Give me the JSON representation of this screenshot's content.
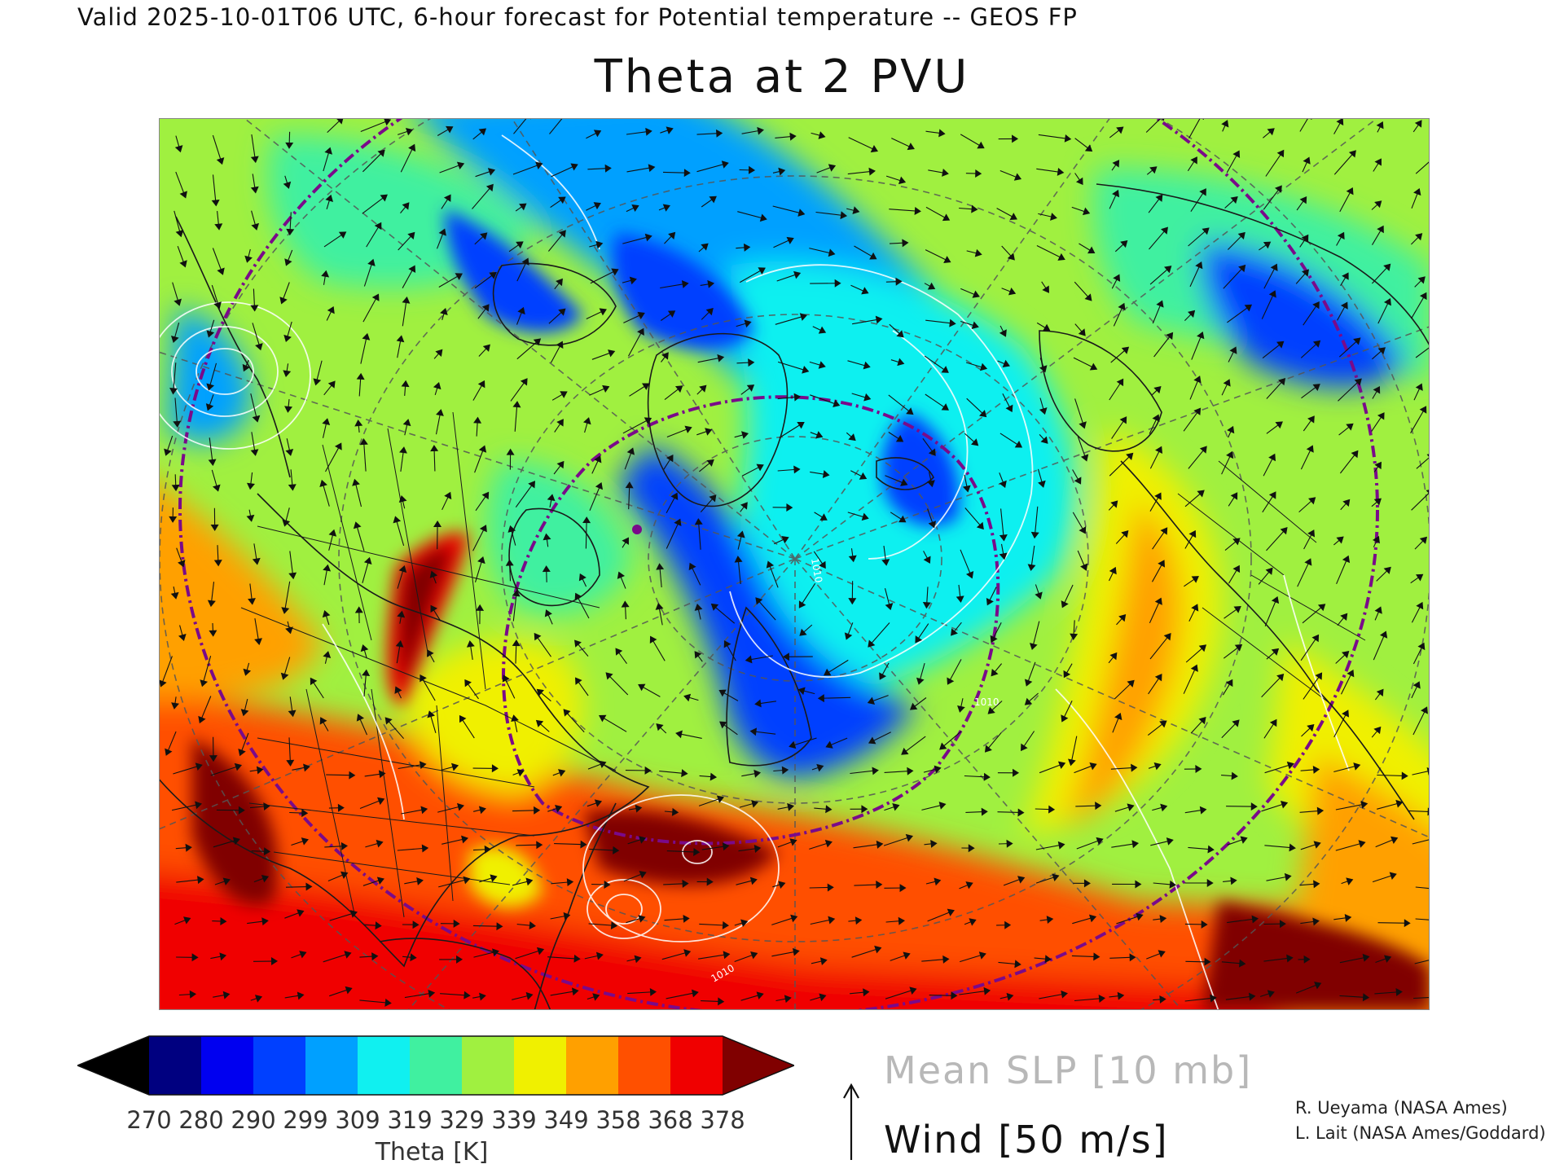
{
  "header": {
    "valid_line": "Valid 2025-10-01T06 UTC, 6-hour forecast for Potential temperature -- GEOS FP",
    "title": "Theta at 2 PVU"
  },
  "colorbar": {
    "label": "Theta [K]",
    "ticks": [
      "270",
      "280",
      "290",
      "299",
      "309",
      "319",
      "329",
      "339",
      "349",
      "358",
      "368",
      "378"
    ],
    "colors": [
      "#000000",
      "#000080",
      "#0000f0",
      "#0040ff",
      "#00a0ff",
      "#10f0f0",
      "#40f0a0",
      "#a0f040",
      "#f0f000",
      "#ffa000",
      "#ff5000",
      "#f00000",
      "#800000"
    ]
  },
  "legend": {
    "slp": "Mean SLP [10 mb]",
    "wind": "Wind [50 m/s]"
  },
  "credits": {
    "line1": "R. Ueyama (NASA Ames)",
    "line2": "L. Lait (NASA Ames/Goddard)"
  },
  "map": {
    "slp_label": "1010",
    "field_colors": {
      "deep_blue": "#0040ff",
      "blue": "#00a0ff",
      "cyan": "#10f0f0",
      "teal": "#40f0a0",
      "green": "#a0f040",
      "yellow": "#f0f000",
      "orange": "#ffa000",
      "red_orange": "#ff5000",
      "red": "#f00000",
      "dark_red": "#800000"
    },
    "overlay_colors": {
      "coastline": "#1a1a1a",
      "isobar": "#ffffff",
      "graticule": "#555555",
      "circle": "#7a0a8a"
    }
  }
}
